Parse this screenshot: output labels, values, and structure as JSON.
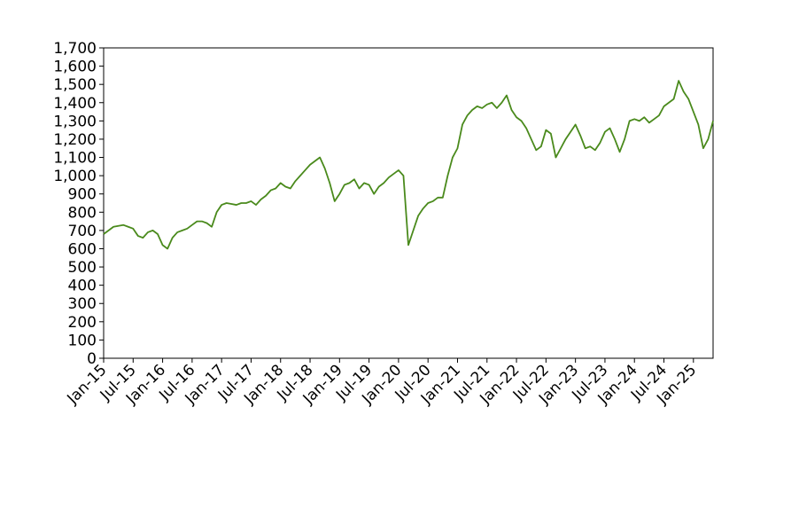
{
  "chart_data": {
    "type": "line",
    "categories": [
      "Jan-15",
      null,
      null,
      null,
      null,
      null,
      "Jul-15",
      null,
      null,
      null,
      null,
      null,
      "Jan-16",
      null,
      null,
      null,
      null,
      null,
      "Jul-16",
      null,
      null,
      null,
      null,
      null,
      "Jan-17",
      null,
      null,
      null,
      null,
      null,
      "Jul-17",
      null,
      null,
      null,
      null,
      null,
      "Jan-18",
      null,
      null,
      null,
      null,
      null,
      "Jul-18",
      null,
      null,
      null,
      null,
      null,
      "Jan-19",
      null,
      null,
      null,
      null,
      null,
      "Jul-19",
      null,
      null,
      null,
      null,
      null,
      "Jan-20",
      null,
      null,
      null,
      null,
      null,
      "Jul-20",
      null,
      null,
      null,
      null,
      null,
      "Jan-21",
      null,
      null,
      null,
      null,
      null,
      "Jul-21",
      null,
      null,
      null,
      null,
      null,
      "Jan-22",
      null,
      null,
      null,
      null,
      null,
      "Jul-22",
      null,
      null,
      null,
      null,
      null,
      "Jan-23",
      null,
      null,
      null,
      null,
      null,
      "Jul-23",
      null,
      null,
      null,
      null,
      null,
      "Jan-24",
      null,
      null,
      null,
      null,
      null,
      "Jul-24",
      null,
      null,
      null,
      null,
      null,
      "Jan-25",
      null,
      null,
      null,
      null
    ],
    "values": [
      680,
      700,
      720,
      725,
      730,
      720,
      710,
      670,
      660,
      690,
      700,
      680,
      620,
      600,
      660,
      690,
      700,
      710,
      730,
      750,
      750,
      740,
      720,
      800,
      840,
      850,
      845,
      840,
      850,
      850,
      860,
      840,
      870,
      890,
      920,
      930,
      960,
      940,
      930,
      970,
      1000,
      1030,
      1060,
      1080,
      1100,
      1040,
      960,
      860,
      900,
      950,
      960,
      980,
      930,
      960,
      950,
      900,
      940,
      960,
      990,
      1010,
      1030,
      1000,
      620,
      700,
      780,
      820,
      850,
      860,
      880,
      880,
      1000,
      1100,
      1150,
      1280,
      1330,
      1360,
      1380,
      1370,
      1390,
      1400,
      1370,
      1400,
      1440,
      1360,
      1320,
      1300,
      1260,
      1200,
      1140,
      1160,
      1250,
      1230,
      1100,
      1150,
      1200,
      1240,
      1280,
      1220,
      1150,
      1160,
      1140,
      1180,
      1240,
      1260,
      1200,
      1130,
      1200,
      1300,
      1310,
      1300,
      1320,
      1290,
      1310,
      1330,
      1380,
      1400,
      1420,
      1520,
      1460,
      1420,
      1350,
      1280,
      1150,
      1200,
      1300
    ],
    "color": "#4a8a1c",
    "ylim": [
      0,
      1700
    ],
    "yticks": [
      0,
      100,
      200,
      300,
      400,
      500,
      600,
      700,
      800,
      900,
      {
        "value": 1000,
        "label": "1,000"
      },
      {
        "value": 1100,
        "label": "1,100"
      },
      {
        "value": 1200,
        "label": "1,200"
      },
      {
        "value": 1300,
        "label": "1,300"
      },
      {
        "value": 1400,
        "label": "1,400"
      },
      {
        "value": 1500,
        "label": "1,500"
      },
      {
        "value": 1600,
        "label": "1,600"
      },
      {
        "value": 1700,
        "label": "1,700"
      }
    ],
    "grid": false
  }
}
